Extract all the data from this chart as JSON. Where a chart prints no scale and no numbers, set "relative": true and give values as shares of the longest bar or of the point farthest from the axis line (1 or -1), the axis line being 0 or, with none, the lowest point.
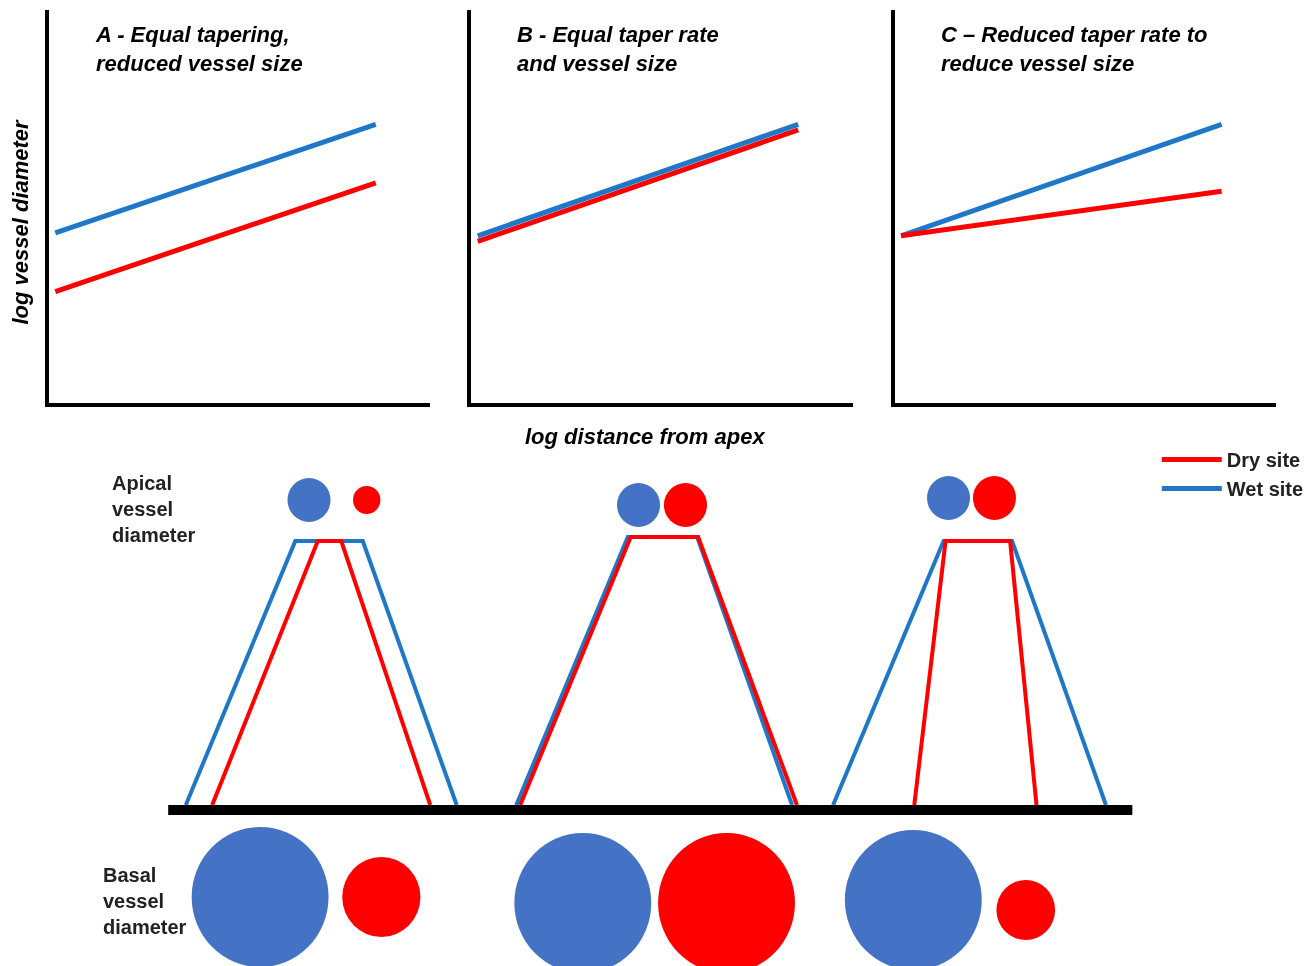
{
  "chart_data": [
    {
      "type": "line",
      "title": "A - Equal tapering,\nreduced vessel size",
      "ylabel": "log vessel diameter",
      "relative": true,
      "categories": [
        null,
        null
      ],
      "annotations": [
        "Apical\nvessel\ndiameter",
        "Basal\nvessel\ndiameter"
      ],
      "legend": "bottom right",
      "series": [
        {
          "name": "Dry site",
          "color": "#ff0000",
          "values": [
            0.4,
            0.79
          ]
        },
        {
          "name": "Wet site",
          "color": "#1f77c8",
          "values": [
            0.61,
            1
          ]
        }
      ]
    },
    {
      "type": "line",
      "title": "B - Equal taper rate\nand vessel size",
      "xlabel": "log distance from apex",
      "relative": true,
      "categories": [
        null,
        null
      ],
      "series": [
        {
          "color": "#ff0000",
          "values": [
            0.58,
            0.98
          ]
        },
        {
          "color": "#1f77c8",
          "values": [
            0.6,
            1
          ]
        }
      ]
    },
    {
      "type": "line",
      "title": "C – Reduced taper rate to\nreduce vessel size",
      "relative": true,
      "categories": [
        null,
        null
      ],
      "series": [
        {
          "color": "#1f77c8",
          "values": [
            0.6,
            1
          ]
        },
        {
          "color": "#ff0000",
          "values": [
            0.6,
            0.76
          ]
        }
      ]
    }
  ]
}
